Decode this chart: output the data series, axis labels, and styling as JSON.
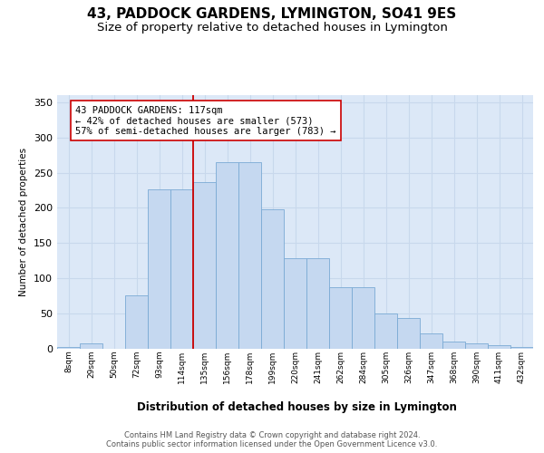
{
  "title": "43, PADDOCK GARDENS, LYMINGTON, SO41 9ES",
  "subtitle": "Size of property relative to detached houses in Lymington",
  "xlabel": "Distribution of detached houses by size in Lymington",
  "ylabel": "Number of detached properties",
  "bin_labels": [
    "8sqm",
    "29sqm",
    "50sqm",
    "72sqm",
    "93sqm",
    "114sqm",
    "135sqm",
    "156sqm",
    "178sqm",
    "199sqm",
    "220sqm",
    "241sqm",
    "262sqm",
    "284sqm",
    "305sqm",
    "326sqm",
    "347sqm",
    "368sqm",
    "390sqm",
    "411sqm",
    "432sqm"
  ],
  "bar_heights": [
    2,
    8,
    0,
    76,
    226,
    226,
    236,
    265,
    265,
    198,
    128,
    128,
    87,
    87,
    50,
    44,
    22,
    10,
    8,
    5,
    3
  ],
  "bar_color": "#c5d8f0",
  "bar_edge_color": "#7aaad4",
  "vline_color": "#cc0000",
  "vline_pos": 5.5,
  "annotation_text": "43 PADDOCK GARDENS: 117sqm\n← 42% of detached houses are smaller (573)\n57% of semi-detached houses are larger (783) →",
  "ylim": [
    0,
    360
  ],
  "yticks": [
    0,
    50,
    100,
    150,
    200,
    250,
    300,
    350
  ],
  "bg_color": "#dce8f7",
  "grid_color": "#c8d8ec",
  "title_fontsize": 11,
  "subtitle_fontsize": 9.5,
  "footer_line1": "Contains HM Land Registry data © Crown copyright and database right 2024.",
  "footer_line2": "Contains public sector information licensed under the Open Government Licence v3.0."
}
